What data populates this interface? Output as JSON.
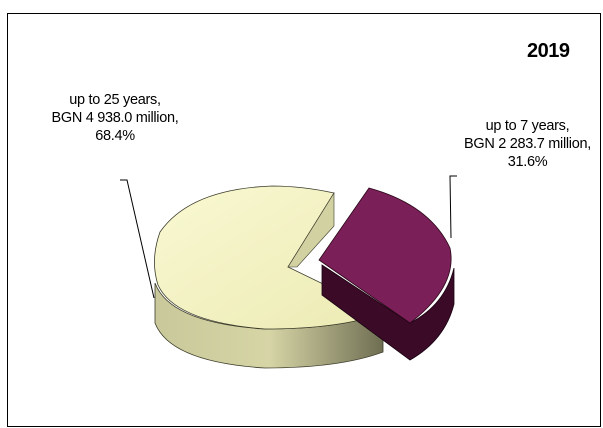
{
  "chart_data": {
    "type": "pie",
    "title": "2019",
    "categories": [
      "up to 25 years",
      "up to 7 years"
    ],
    "values": [
      4938.0,
      2283.7
    ],
    "percentages": [
      68.4,
      31.6
    ],
    "unit": "BGN million",
    "slices": [
      {
        "label_lines": [
          "up to 25 years,",
          "BGN 4 938.0 million,",
          "68.4%"
        ],
        "value": 4938.0,
        "percent": 68.4,
        "color": "#f7f5c4"
      },
      {
        "label_lines": [
          "up to 7 years,",
          "BGN  2 283.7 million,",
          "31.6%"
        ],
        "value": 2283.7,
        "percent": 31.6,
        "color": "#7a1f57"
      }
    ],
    "legend": "none",
    "grid": false
  }
}
